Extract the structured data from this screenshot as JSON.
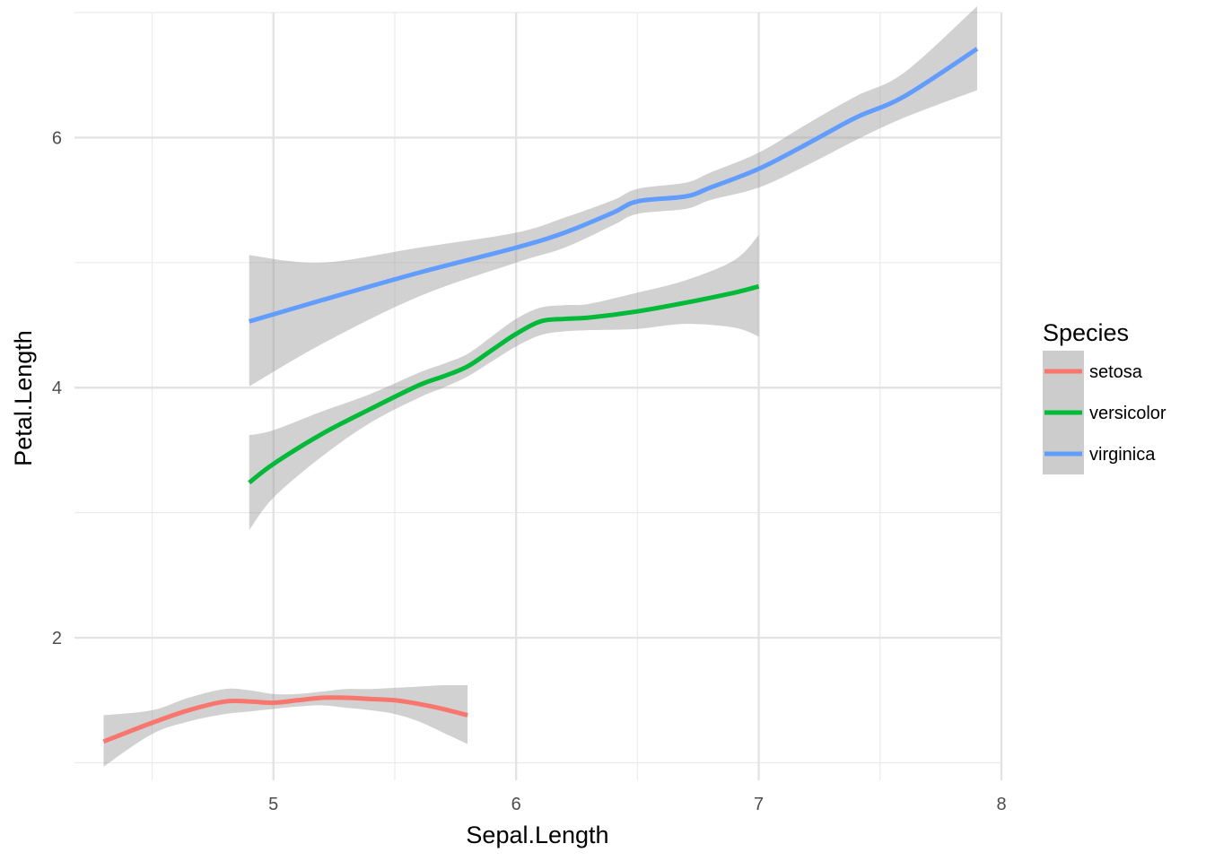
{
  "chart_data": {
    "type": "line",
    "subtype": "smoothed-with-confidence-band",
    "xlabel": "Sepal.Length",
    "ylabel": "Petal.Length",
    "xlim": [
      4.18,
      8.0
    ],
    "ylim": [
      0.86,
      7.0
    ],
    "x_ticks": [
      5,
      6,
      7,
      8
    ],
    "y_ticks": [
      2,
      4,
      6
    ],
    "x_minor": [
      4.5,
      5.5,
      6.5,
      7.5
    ],
    "y_minor": [
      1,
      3,
      5,
      7
    ],
    "grid": true,
    "legend": {
      "title": "Species",
      "position": "right"
    },
    "series": [
      {
        "name": "setosa",
        "color": "#F8766D",
        "x": [
          4.3,
          4.5,
          4.65,
          4.8,
          4.9,
          5.0,
          5.1,
          5.2,
          5.3,
          5.4,
          5.5,
          5.6,
          5.7,
          5.8
        ],
        "y": [
          1.17,
          1.32,
          1.42,
          1.49,
          1.49,
          1.48,
          1.5,
          1.52,
          1.52,
          1.51,
          1.5,
          1.47,
          1.43,
          1.38
        ],
        "lower": [
          0.97,
          1.23,
          1.33,
          1.39,
          1.41,
          1.43,
          1.45,
          1.46,
          1.44,
          1.42,
          1.39,
          1.33,
          1.24,
          1.15
        ],
        "upper": [
          1.38,
          1.42,
          1.52,
          1.59,
          1.58,
          1.55,
          1.55,
          1.57,
          1.59,
          1.59,
          1.6,
          1.61,
          1.62,
          1.62
        ]
      },
      {
        "name": "versicolor",
        "color": "#00BA38",
        "x": [
          4.9,
          5.0,
          5.2,
          5.4,
          5.6,
          5.7,
          5.8,
          5.9,
          6.0,
          6.1,
          6.2,
          6.3,
          6.5,
          6.7,
          6.9,
          7.0
        ],
        "y": [
          3.24,
          3.39,
          3.63,
          3.83,
          4.02,
          4.09,
          4.17,
          4.3,
          4.43,
          4.53,
          4.55,
          4.56,
          4.61,
          4.68,
          4.76,
          4.81
        ],
        "lower": [
          2.86,
          3.12,
          3.45,
          3.72,
          3.92,
          4.0,
          4.09,
          4.21,
          4.33,
          4.42,
          4.45,
          4.46,
          4.47,
          4.51,
          4.48,
          4.41
        ],
        "upper": [
          3.62,
          3.66,
          3.81,
          3.95,
          4.12,
          4.19,
          4.27,
          4.41,
          4.55,
          4.64,
          4.66,
          4.67,
          4.76,
          4.86,
          5.02,
          5.22
        ]
      },
      {
        "name": "virginica",
        "color": "#619CFF",
        "x": [
          4.9,
          5.2,
          5.6,
          6.0,
          6.2,
          6.4,
          6.5,
          6.7,
          6.8,
          7.0,
          7.2,
          7.4,
          7.6,
          7.9
        ],
        "y": [
          4.53,
          4.7,
          4.92,
          5.12,
          5.24,
          5.4,
          5.49,
          5.53,
          5.6,
          5.75,
          5.95,
          6.16,
          6.33,
          6.71
        ],
        "lower": [
          4.01,
          4.35,
          4.73,
          5.0,
          5.12,
          5.3,
          5.39,
          5.43,
          5.5,
          5.6,
          5.78,
          5.98,
          6.16,
          6.38
        ],
        "upper": [
          5.06,
          5.0,
          5.12,
          5.24,
          5.36,
          5.5,
          5.59,
          5.64,
          5.72,
          5.88,
          6.11,
          6.33,
          6.52,
          7.05
        ]
      }
    ]
  }
}
